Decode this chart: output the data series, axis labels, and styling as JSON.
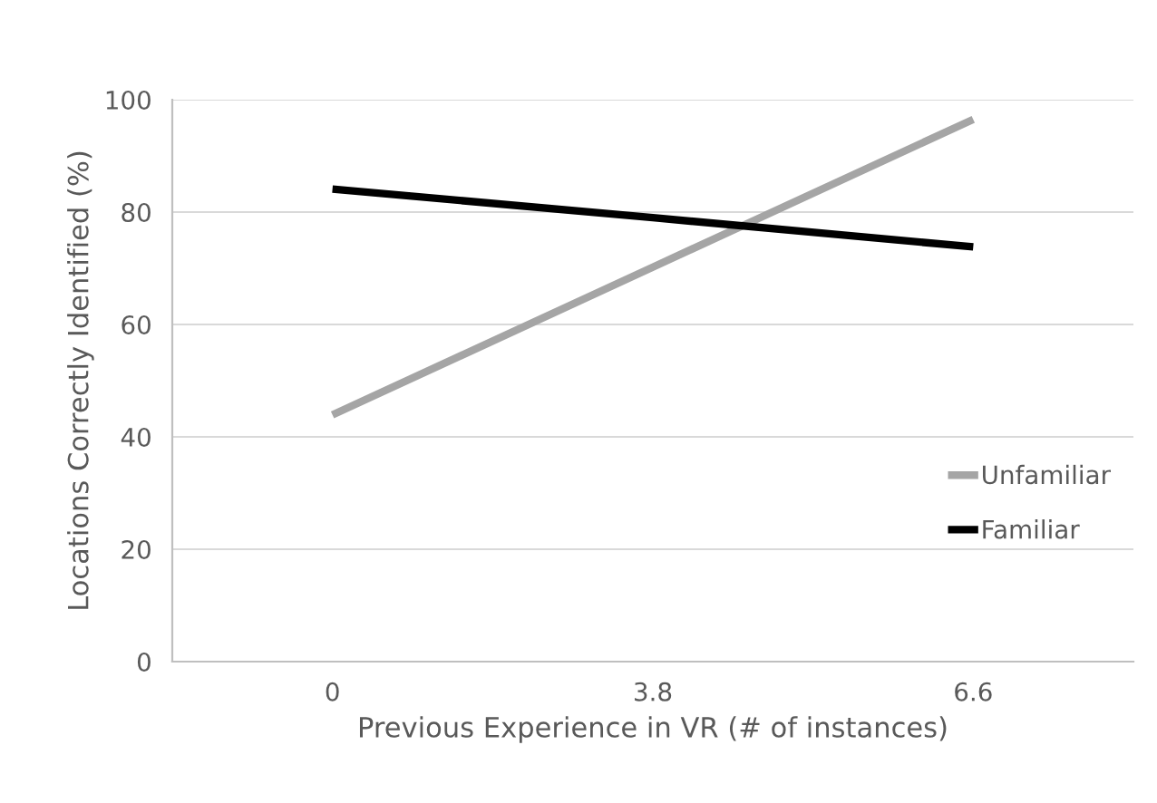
{
  "chart_data": {
    "type": "line",
    "xlabel": "Previous Experience in VR (# of instances)",
    "ylabel": "Locations Correctly Identified (%)",
    "categories": [
      "0",
      "3.8",
      "6.6"
    ],
    "series": [
      {
        "name": "Unfamiliar",
        "color": "#a5a5a5",
        "values": [
          43.9,
          70.2,
          96.5
        ]
      },
      {
        "name": "Familiar",
        "color": "#000000",
        "values": [
          84.1,
          79.0,
          73.8
        ]
      }
    ],
    "ylim": [
      0,
      100
    ],
    "yticks": [
      0,
      20,
      40,
      60,
      80,
      100
    ],
    "grid": "y",
    "legend": "right",
    "marker": "none",
    "line_style": "solid"
  }
}
